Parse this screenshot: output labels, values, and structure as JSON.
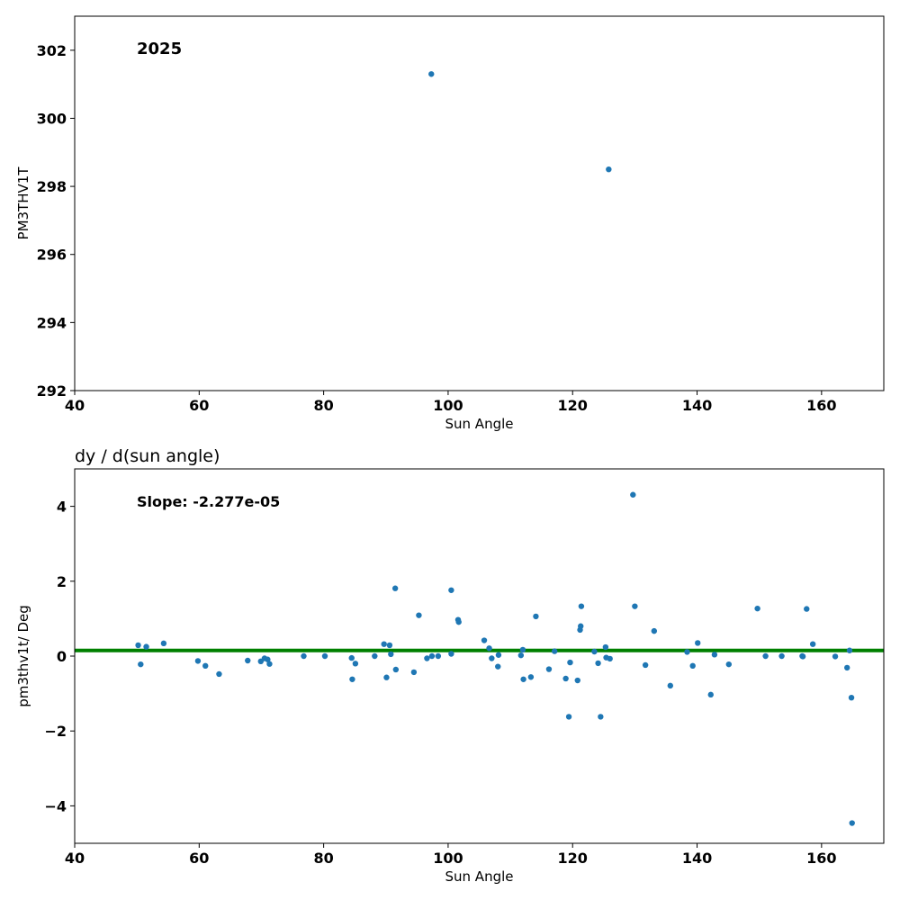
{
  "colors": {
    "point": "#1f77b4",
    "fit_line": "#008000",
    "axes": "#000000",
    "background": "#ffffff"
  },
  "chart_data": [
    {
      "type": "scatter",
      "title": "",
      "annotation": "2025",
      "xlabel": "Sun Angle",
      "ylabel": "PM3THV1T",
      "xlim": [
        40,
        170
      ],
      "ylim": [
        292,
        303
      ],
      "xticks": [
        40,
        60,
        80,
        100,
        120,
        140,
        160
      ],
      "yticks": [
        292,
        294,
        296,
        298,
        300,
        302
      ],
      "grid": false,
      "series": [
        {
          "x": [
            97.3,
            125.8
          ],
          "y": [
            301.3,
            298.5
          ]
        }
      ]
    },
    {
      "type": "scatter",
      "title": "dy / d(sun angle)",
      "annotation": "Slope: -2.277e-05",
      "xlabel": "Sun Angle",
      "ylabel": "pm3thv1t/ Deg",
      "xlim": [
        40,
        170
      ],
      "ylim": [
        -5,
        5
      ],
      "xticks": [
        40,
        60,
        80,
        100,
        120,
        140,
        160
      ],
      "yticks": [
        -4,
        -2,
        0,
        2,
        4
      ],
      "grid": false,
      "fit_line": {
        "y": 0.15
      },
      "series": [
        {
          "x": [
            50.2,
            50.6,
            51.5,
            54.3,
            59.8,
            61.0,
            63.2,
            67.8,
            69.9,
            70.5,
            71.0,
            71.3,
            76.8,
            80.2,
            84.5,
            84.6,
            85.1,
            88.2,
            89.7,
            90.1,
            90.6,
            90.8,
            91.5,
            91.6,
            94.5,
            95.3,
            96.6,
            97.4,
            98.4,
            100.5,
            100.5,
            101.6,
            101.7,
            105.8,
            106.6,
            107.0,
            108.0,
            108.1,
            111.7,
            112.0,
            112.1,
            113.3,
            114.1,
            116.2,
            117.1,
            118.9,
            119.4,
            119.6,
            120.8,
            121.2,
            121.3,
            121.4,
            123.5,
            124.1,
            124.5,
            125.3,
            125.4,
            126.0,
            129.7,
            130.0,
            131.7,
            133.1,
            135.7,
            138.4,
            139.3,
            140.1,
            142.2,
            142.8,
            145.1,
            149.7,
            151.0,
            153.6,
            156.9,
            157.0,
            157.6,
            158.6,
            162.2,
            164.1,
            164.5,
            164.8,
            164.9
          ],
          "y": [
            0.29,
            -0.22,
            0.25,
            0.34,
            -0.13,
            -0.26,
            -0.48,
            -0.12,
            -0.14,
            -0.06,
            -0.09,
            -0.21,
            0.0,
            0.0,
            -0.05,
            -0.62,
            -0.2,
            0.0,
            0.32,
            -0.57,
            0.29,
            0.05,
            1.81,
            -0.36,
            -0.43,
            1.09,
            -0.06,
            0.0,
            0.0,
            1.76,
            0.06,
            0.97,
            0.91,
            0.42,
            0.21,
            -0.06,
            -0.28,
            0.03,
            0.02,
            0.17,
            -0.62,
            -0.56,
            1.06,
            -0.35,
            0.13,
            -0.6,
            -1.62,
            -0.17,
            -0.65,
            0.7,
            0.8,
            1.33,
            0.12,
            -0.19,
            -1.62,
            0.24,
            -0.04,
            -0.07,
            4.31,
            1.33,
            -0.24,
            0.67,
            -0.79,
            0.11,
            -0.26,
            0.35,
            -1.03,
            0.04,
            -0.22,
            1.27,
            0.0,
            0.0,
            0.0,
            -0.01,
            1.26,
            0.32,
            -0.01,
            -0.31,
            0.15,
            -1.11,
            -4.46
          ]
        }
      ]
    }
  ]
}
